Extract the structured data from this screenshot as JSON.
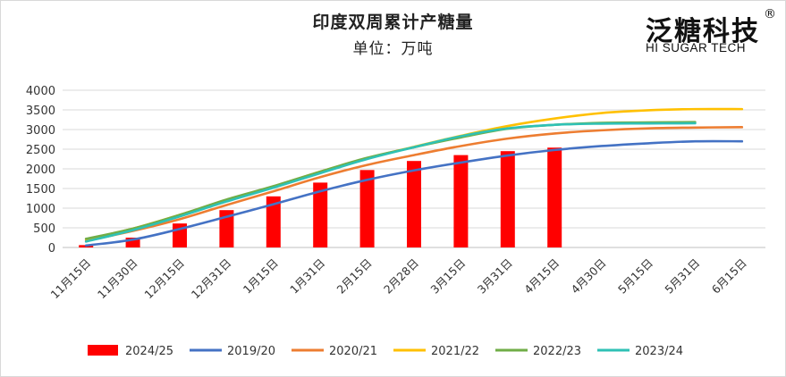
{
  "chart_data": {
    "type": "bar",
    "title": "印度双周累计产糖量",
    "subtitle": "单位：万吨",
    "xlabel": "",
    "ylabel": "",
    "ylim": [
      0,
      4000
    ],
    "yticks": [
      0,
      500,
      1000,
      1500,
      2000,
      2500,
      3000,
      3500,
      4000
    ],
    "categories": [
      "11月15日",
      "11月30日",
      "12月15日",
      "12月31日",
      "1月15日",
      "1月31日",
      "2月15日",
      "2月28日",
      "3月15日",
      "3月31日",
      "4月15日",
      "4月30日",
      "5月15日",
      "5月31日",
      "6月15日"
    ],
    "bars": {
      "name": "2024/25",
      "color": "#ff0000",
      "values": [
        60,
        250,
        610,
        950,
        1300,
        1650,
        1970,
        2200,
        2350,
        2450,
        2540
      ]
    },
    "series": [
      {
        "name": "2019/20",
        "color": "#4472c4",
        "values": [
          50,
          200,
          470,
          780,
          1100,
          1430,
          1720,
          1960,
          2160,
          2340,
          2480,
          2580,
          2650,
          2700,
          2700
        ]
      },
      {
        "name": "2020/21",
        "color": "#ed7d31",
        "values": [
          170,
          420,
          720,
          1080,
          1430,
          1790,
          2100,
          2350,
          2580,
          2770,
          2900,
          2980,
          3030,
          3050,
          3060
        ]
      },
      {
        "name": "2021/22",
        "color": "#ffc000",
        "values": [
          210,
          480,
          830,
          1200,
          1550,
          1930,
          2270,
          2560,
          2840,
          3090,
          3280,
          3420,
          3490,
          3520,
          3520
        ]
      },
      {
        "name": "2022/23",
        "color": "#70ad47",
        "values": [
          220,
          480,
          830,
          1220,
          1560,
          1930,
          2280,
          2550,
          2800,
          3020,
          3120,
          3170,
          3180,
          3190,
          null
        ]
      },
      {
        "name": "2023/24",
        "color": "#2fc1b5",
        "values": [
          150,
          440,
          790,
          1170,
          1520,
          1890,
          2250,
          2550,
          2830,
          3030,
          3120,
          3150,
          3155,
          3160,
          null
        ]
      }
    ],
    "legend_position": "bottom"
  },
  "logo": {
    "cn": "泛糖科技",
    "en": "HI SUGAR TECH",
    "reg": "®"
  }
}
